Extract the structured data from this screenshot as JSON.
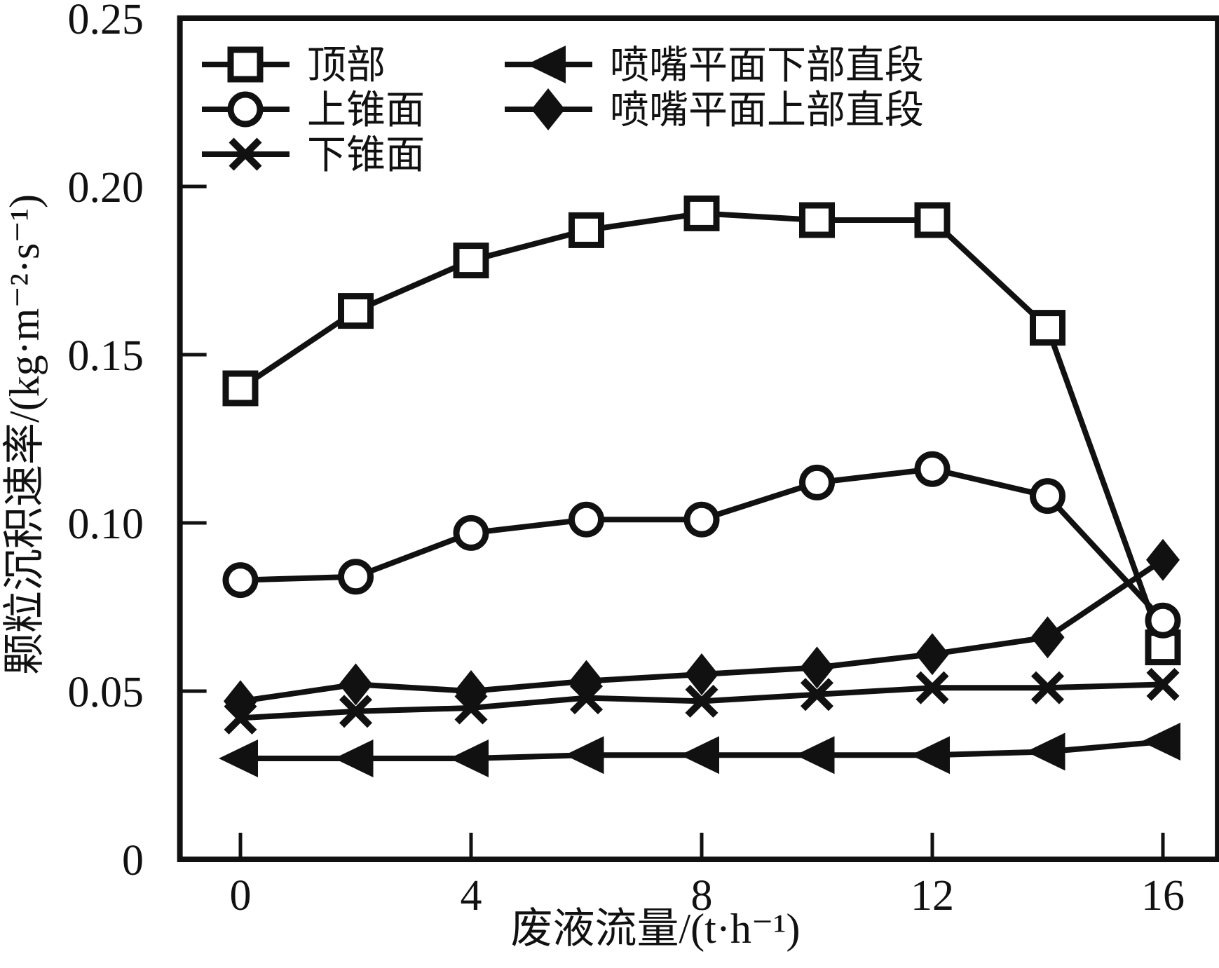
{
  "figure": {
    "background": "#ffffff",
    "ink_color": "#111111"
  },
  "chart_data": {
    "type": "line",
    "title": "",
    "xlabel": "废液流量/(t·h⁻¹)",
    "ylabel": "颗粒沉积速率/(kg·m⁻²·s⁻¹)",
    "x": [
      0,
      2,
      4,
      6,
      8,
      10,
      12,
      14,
      16
    ],
    "series": [
      {
        "name": "顶部",
        "marker": "square-open",
        "values": [
          0.14,
          0.163,
          0.178,
          0.187,
          0.192,
          0.19,
          0.19,
          0.158,
          0.063
        ]
      },
      {
        "name": "上锥面",
        "marker": "circle-open",
        "values": [
          0.083,
          0.084,
          0.097,
          0.101,
          0.101,
          0.112,
          0.116,
          0.108,
          0.071
        ]
      },
      {
        "name": "下锥面",
        "marker": "x-cross",
        "values": [
          0.042,
          0.044,
          0.045,
          0.048,
          0.047,
          0.049,
          0.051,
          0.051,
          0.052
        ]
      },
      {
        "name": "喷嘴平面下部直段",
        "marker": "triangle-left-filled",
        "values": [
          0.03,
          0.03,
          0.03,
          0.031,
          0.031,
          0.031,
          0.031,
          0.032,
          0.035
        ]
      },
      {
        "name": "喷嘴平面上部直段",
        "marker": "diamond-filled",
        "values": [
          0.047,
          0.052,
          0.05,
          0.053,
          0.055,
          0.057,
          0.061,
          0.066,
          0.089
        ]
      }
    ],
    "x_ticks": [
      0,
      4,
      8,
      12,
      16
    ],
    "x_tick_labels": [
      "0",
      "4",
      "8",
      "12",
      "16"
    ],
    "y_ticks": [
      0,
      0.05,
      0.1,
      0.15,
      0.2,
      0.25
    ],
    "y_tick_labels": [
      "0",
      "0.05",
      "0.10",
      "0.15",
      "0.20",
      "0.25"
    ],
    "xlim": [
      -1.05,
      16.95
    ],
    "ylim": [
      0,
      0.25
    ],
    "grid": false,
    "legend_position": "top-left-inside",
    "legend_columns": [
      [
        "顶部",
        "上锥面",
        "下锥面"
      ],
      [
        "喷嘴平面下部直段",
        "喷嘴平面上部直段"
      ]
    ]
  }
}
